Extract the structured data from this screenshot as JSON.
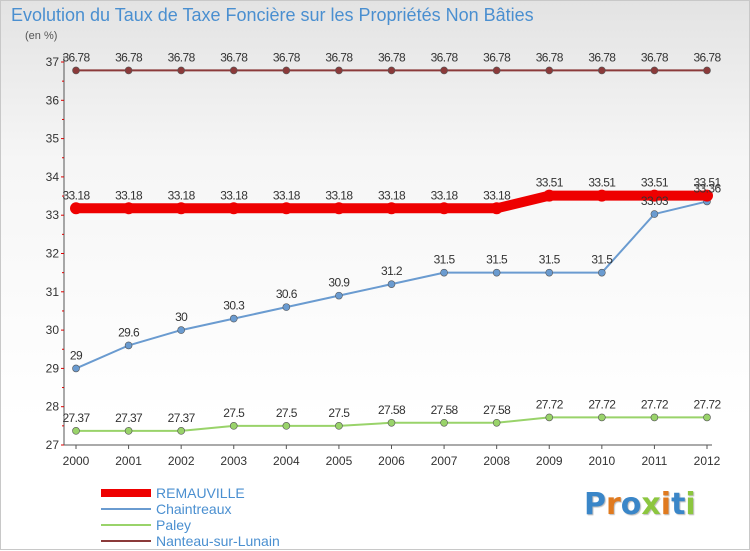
{
  "title": "Evolution du Taux de Taxe Foncière sur les Propriétés Non Bâties",
  "unit_label": "(en %)",
  "logo": {
    "text": "Proxiti",
    "letters": [
      "P",
      "r",
      "o",
      "x",
      "i",
      "t",
      "i"
    ],
    "colors": [
      "#3a86c8",
      "#e07a1f",
      "#3a86c8",
      "#8cc63f",
      "#e07a1f",
      "#3a86c8",
      "#8cc63f"
    ]
  },
  "chart_data": {
    "type": "line",
    "title": "Evolution du Taux de Taxe Foncière sur les Propriétés Non Bâties",
    "ylabel": "(en %)",
    "xlabel": "",
    "x": [
      "2000",
      "2001",
      "2002",
      "2003",
      "2004",
      "2005",
      "2006",
      "2007",
      "2008",
      "2009",
      "2010",
      "2011",
      "2012"
    ],
    "ylim": [
      27,
      37
    ],
    "yticks": [
      "27",
      "28",
      "29",
      "30",
      "31",
      "32",
      "33",
      "34",
      "35",
      "36",
      "37"
    ],
    "grid": false,
    "legend_position": "bottom-left",
    "series": [
      {
        "name": "REMAUVILLE",
        "color": "#ee0000",
        "style": "thick",
        "values": [
          33.18,
          33.18,
          33.18,
          33.18,
          33.18,
          33.18,
          33.18,
          33.18,
          33.18,
          33.51,
          33.51,
          33.51,
          33.51
        ],
        "labels": [
          "33.18",
          "33.18",
          "33.18",
          "33.18",
          "33.18",
          "33.18",
          "33.18",
          "33.18",
          "33.18",
          "33.51",
          "33.51",
          "33.51",
          "33.51"
        ]
      },
      {
        "name": "Chaintreaux",
        "color": "#6a9bd0",
        "style": "thin",
        "values": [
          29,
          29.6,
          30,
          30.3,
          30.6,
          30.9,
          31.2,
          31.5,
          31.5,
          31.5,
          31.5,
          33.03,
          33.36
        ],
        "labels": [
          "29",
          "29.6",
          "30",
          "30.3",
          "30.6",
          "30.9",
          "31.2",
          "31.5",
          "31.5",
          "31.5",
          "31.5",
          "33.03",
          "33.36"
        ]
      },
      {
        "name": "Paley",
        "color": "#99d36a",
        "style": "thin",
        "values": [
          27.37,
          27.37,
          27.37,
          27.5,
          27.5,
          27.5,
          27.58,
          27.58,
          27.58,
          27.72,
          27.72,
          27.72,
          27.72
        ],
        "labels": [
          "27.37",
          "27.37",
          "27.37",
          "27.5",
          "27.5",
          "27.5",
          "27.58",
          "27.58",
          "27.58",
          "27.72",
          "27.72",
          "27.72",
          "27.72"
        ]
      },
      {
        "name": "Nanteau-sur-Lunain",
        "color": "#8b3a3a",
        "style": "thin",
        "values": [
          36.78,
          36.78,
          36.78,
          36.78,
          36.78,
          36.78,
          36.78,
          36.78,
          36.78,
          36.78,
          36.78,
          36.78,
          36.78
        ],
        "labels": [
          "36.78",
          "36.78",
          "36.78",
          "36.78",
          "36.78",
          "36.78",
          "36.78",
          "36.78",
          "36.78",
          "36.78",
          "36.78",
          "36.78",
          "36.78"
        ]
      }
    ]
  }
}
